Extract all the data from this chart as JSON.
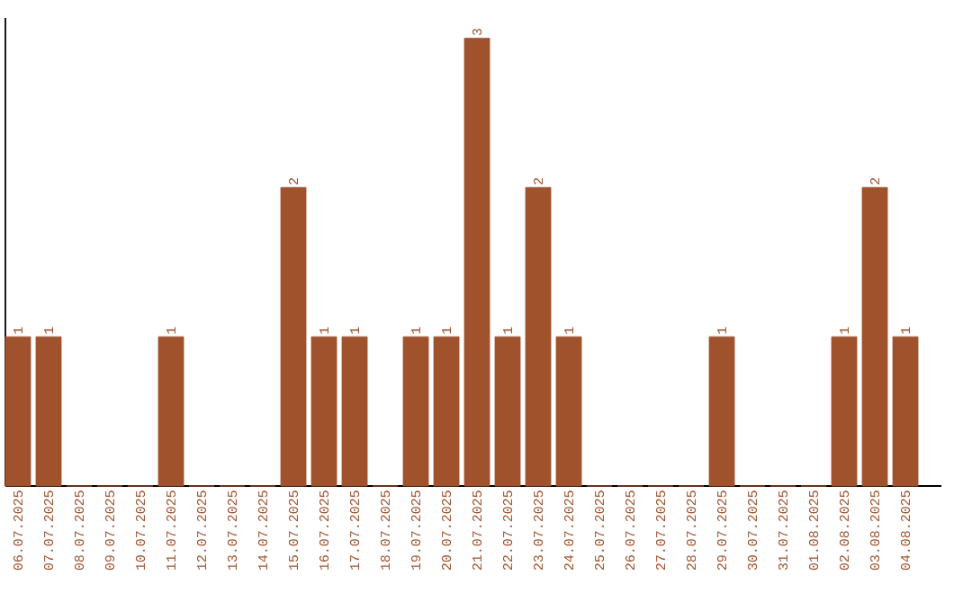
{
  "chart_data": {
    "type": "bar",
    "categories": [
      "06.07.2025",
      "07.07.2025",
      "08.07.2025",
      "09.07.2025",
      "10.07.2025",
      "11.07.2025",
      "12.07.2025",
      "13.07.2025",
      "14.07.2025",
      "15.07.2025",
      "16.07.2025",
      "17.07.2025",
      "18.07.2025",
      "19.07.2025",
      "20.07.2025",
      "21.07.2025",
      "22.07.2025",
      "23.07.2025",
      "24.07.2025",
      "25.07.2025",
      "26.07.2025",
      "27.07.2025",
      "28.07.2025",
      "29.07.2025",
      "30.07.2025",
      "31.07.2025",
      "01.08.2025",
      "02.08.2025",
      "03.08.2025",
      "04.08.2025"
    ],
    "values": [
      1,
      1,
      0,
      0,
      0,
      1,
      0,
      0,
      0,
      2,
      1,
      1,
      0,
      1,
      1,
      3,
      1,
      2,
      1,
      0,
      0,
      0,
      0,
      1,
      0,
      0,
      0,
      1,
      2,
      1
    ],
    "value_labels": [
      "1",
      "1",
      null,
      null,
      null,
      "1",
      null,
      null,
      null,
      "2",
      "1",
      "1",
      null,
      "1",
      "1",
      "3",
      "1",
      "2",
      "1",
      null,
      null,
      null,
      null,
      "1",
      null,
      null,
      null,
      "1",
      "2",
      "1"
    ],
    "color": "#a0522d",
    "tick_labels": "x"
  }
}
